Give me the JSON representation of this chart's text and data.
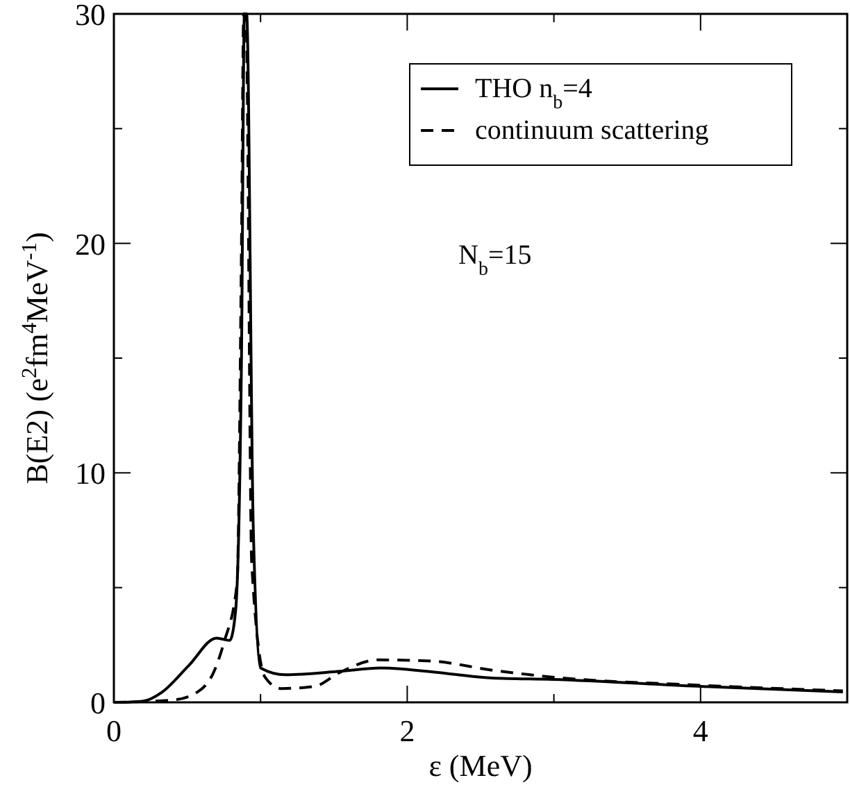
{
  "chart_data": {
    "type": "line",
    "xlabel": "ε (MeV)",
    "ylabel": "B(E2) (e$^{2}$fm$^{4}$MeV$^{-1}$)",
    "xlim": [
      0,
      5
    ],
    "xticks": [
      0,
      {
        "value": 1,
        "label": null
      },
      2,
      {
        "value": 3,
        "label": null
      },
      4,
      {
        "value": 5,
        "label": null
      }
    ],
    "ylim": [
      0,
      30
    ],
    "yticks": [
      0,
      {
        "value": 5,
        "label": null
      },
      10,
      {
        "value": 15,
        "label": null
      },
      20,
      {
        "value": 25,
        "label": null
      },
      30
    ],
    "legend": "top right",
    "grid": false,
    "marker": "none",
    "annotations": [
      "N$_{b}$=15"
    ],
    "series": [
      {
        "name": "THO n$_{b}$=4",
        "color": "#000000",
        "line_style": "solid",
        "x": [
          0,
          0.1,
          0.2,
          0.33,
          0.51,
          0.7,
          0.79,
          0.83,
          0.87,
          0.89,
          0.905,
          0.95,
          1.0,
          1.17,
          1.54,
          1.82,
          2.28,
          2.58,
          2.99,
          3.98,
          4.97
        ],
        "values": [
          0,
          0.01,
          0.05,
          0.45,
          1.6,
          2.8,
          2.7,
          4,
          15,
          30,
          30,
          7.7,
          1.5,
          1.2,
          1.35,
          1.5,
          1.25,
          1.06,
          1.0,
          0.7,
          0.45
        ]
      },
      {
        "name": "continuum scattering",
        "color": "#000000",
        "line_style": "dashed",
        "x": [
          0,
          0.4,
          0.57,
          0.69,
          0.75,
          0.84,
          0.87,
          0.885,
          0.9,
          0.94,
          1.03,
          1.14,
          1.37,
          1.54,
          1.8,
          2.16,
          2.58,
          2.99,
          3.98,
          4.97
        ],
        "values": [
          0,
          0.1,
          0.45,
          1.45,
          2.6,
          5.2,
          20,
          30,
          30,
          6,
          1.1,
          0.6,
          0.7,
          1.3,
          1.85,
          1.8,
          1.4,
          1.1,
          0.75,
          0.5
        ]
      }
    ]
  }
}
